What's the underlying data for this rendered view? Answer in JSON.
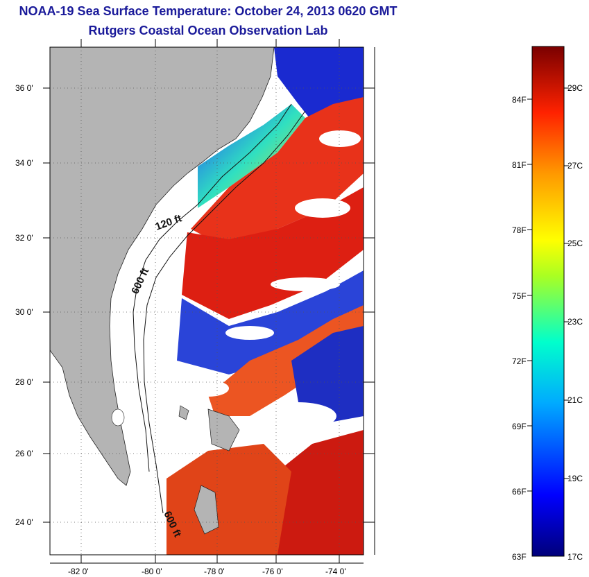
{
  "title": {
    "line1": "NOAA-19 Sea Surface Temperature:  October 24, 2013 0620 GMT",
    "line2": "Rutgers Coastal Ocean Observation Lab"
  },
  "map": {
    "lat_labels": [
      "36 0'",
      "34 0'",
      "32 0'",
      "30 0'",
      "28 0'",
      "26 0'",
      "24 0'"
    ],
    "lon_labels": [
      "-82 0'",
      "-80 0'",
      "-78 0'",
      "-76 0'",
      "-74 0'"
    ],
    "contour_labels": {
      "c120": "120 ft",
      "c600a": "600 ft",
      "c600b": "600 ft"
    },
    "colors": {
      "land": "#b4b4b4",
      "no_data": "#ffffff",
      "warm": "#e01e10",
      "cool": "#10209e"
    }
  },
  "colorbar": {
    "fahrenheit_labels": [
      "84F",
      "81F",
      "78F",
      "75F",
      "72F",
      "69F",
      "66F",
      "63F"
    ],
    "celsius_labels": [
      "29C",
      "27C",
      "25C",
      "23C",
      "21C",
      "19C",
      "17C"
    ]
  }
}
